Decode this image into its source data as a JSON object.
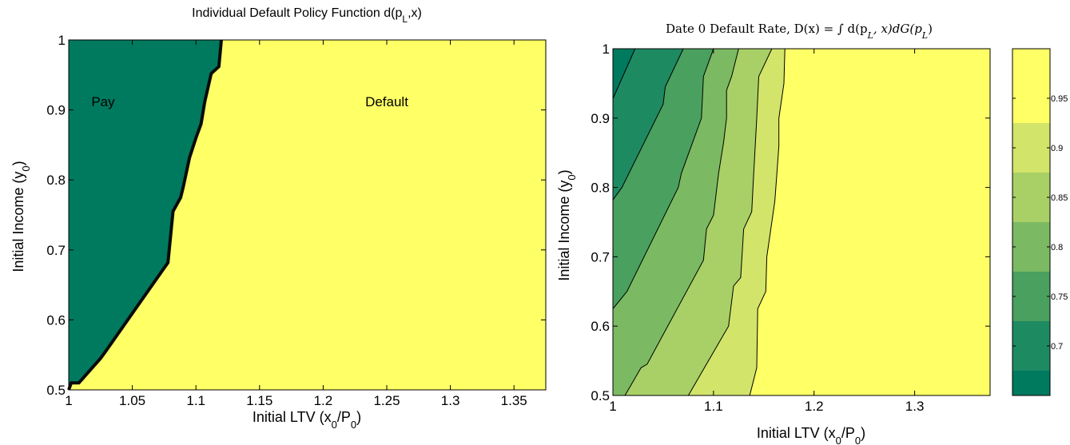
{
  "colors": {
    "pay": "#007a5e",
    "default": "#ffff66",
    "levels": [
      "#007a5e",
      "#1e8a62",
      "#4aa05e",
      "#7bba62",
      "#a8d066",
      "#d2e46a",
      "#ffff66"
    ]
  },
  "chart_data": [
    {
      "type": "area",
      "title_main": "Individual Default Policy Function d(p",
      "title_sub": "L",
      "title_end": ",x)",
      "xlabel_main": "Initial LTV (x",
      "xlabel_sub1": "0",
      "xlabel_mid": "/P",
      "xlabel_sub2": "0",
      "xlabel_end": ")",
      "ylabel_main": "Initial Income (y",
      "ylabel_sub": "0",
      "ylabel_end": ")",
      "xlim": [
        1,
        1.375
      ],
      "ylim": [
        0.5,
        1
      ],
      "xticks": [
        "1",
        "1.05",
        "1.1",
        "1.15",
        "1.2",
        "1.25",
        "1.3",
        "1.35"
      ],
      "xtick_values": [
        1,
        1.05,
        1.1,
        1.15,
        1.2,
        1.25,
        1.3,
        1.35
      ],
      "yticks": [
        "0.5",
        "0.6",
        "0.7",
        "0.8",
        "0.9",
        "1"
      ],
      "ytick_values": [
        0.5,
        0.6,
        0.7,
        0.8,
        0.9,
        1
      ],
      "boundary": [
        [
          1,
          0.5
        ],
        [
          1.002,
          0.51
        ],
        [
          1.008,
          0.51
        ],
        [
          1.025,
          0.545
        ],
        [
          1.029,
          0.555
        ],
        [
          1.078,
          0.682
        ],
        [
          1.082,
          0.755
        ],
        [
          1.088,
          0.775
        ],
        [
          1.09,
          0.79
        ],
        [
          1.095,
          0.832
        ],
        [
          1.1,
          0.86
        ],
        [
          1.104,
          0.88
        ],
        [
          1.107,
          0.912
        ],
        [
          1.112,
          0.952
        ],
        [
          1.118,
          0.962
        ],
        [
          1.12,
          1
        ]
      ],
      "annotations": [
        {
          "text": "Pay",
          "x": 1.027,
          "y": 0.905
        },
        {
          "text": "Default",
          "x": 1.25,
          "y": 0.905
        }
      ]
    },
    {
      "type": "area",
      "title": "Date 0 Default Rate, D(x) = ∫ d(p",
      "title_sub1": "L",
      "title_mid": ", x)dG(p",
      "title_sub2": "L",
      "title_end": ")",
      "xlabel_main": "Initial LTV (x",
      "xlabel_sub1": "0",
      "xlabel_mid": "/P",
      "xlabel_sub2": "0",
      "xlabel_end": ")",
      "ylabel_main": "Initial Income (y",
      "ylabel_sub": "0",
      "ylabel_end": ")",
      "xlim": [
        1,
        1.375
      ],
      "ylim": [
        0.5,
        1
      ],
      "xticks": [
        "1",
        "1.1",
        "1.2",
        "1.3"
      ],
      "xtick_values": [
        1,
        1.1,
        1.2,
        1.3
      ],
      "yticks": [
        "0.5",
        "0.6",
        "0.7",
        "0.8",
        "0.9",
        "1"
      ],
      "ytick_values": [
        0.5,
        0.6,
        0.7,
        0.8,
        0.9,
        1
      ],
      "contours": [
        [
          [
            1,
            0.928
          ],
          [
            1.022,
            1
          ]
        ],
        [
          [
            1,
            0.782
          ],
          [
            1.009,
            0.8
          ],
          [
            1.05,
            0.92
          ],
          [
            1.052,
            0.945
          ],
          [
            1.07,
            1
          ]
        ],
        [
          [
            1,
            0.625
          ],
          [
            1.014,
            0.65
          ],
          [
            1.065,
            0.8
          ],
          [
            1.068,
            0.82
          ],
          [
            1.088,
            0.9
          ],
          [
            1.09,
            0.96
          ],
          [
            1.1,
            1
          ]
        ],
        [
          [
            1.012,
            0.5
          ],
          [
            1.028,
            0.54
          ],
          [
            1.034,
            0.545
          ],
          [
            1.09,
            0.695
          ],
          [
            1.093,
            0.74
          ],
          [
            1.1,
            0.76
          ],
          [
            1.105,
            0.82
          ],
          [
            1.11,
            0.865
          ],
          [
            1.113,
            0.9
          ],
          [
            1.113,
            0.94
          ],
          [
            1.118,
            0.96
          ],
          [
            1.125,
            1
          ]
        ],
        [
          [
            1.075,
            0.5
          ],
          [
            1.115,
            0.6
          ],
          [
            1.12,
            0.658
          ],
          [
            1.127,
            0.67
          ],
          [
            1.13,
            0.74
          ],
          [
            1.138,
            0.765
          ],
          [
            1.14,
            0.82
          ],
          [
            1.143,
            0.9
          ],
          [
            1.145,
            0.96
          ],
          [
            1.158,
            1
          ]
        ],
        [
          [
            1.136,
            0.5
          ],
          [
            1.143,
            0.54
          ],
          [
            1.144,
            0.625
          ],
          [
            1.152,
            0.65
          ],
          [
            1.153,
            0.7
          ],
          [
            1.161,
            0.78
          ],
          [
            1.163,
            0.82
          ],
          [
            1.165,
            0.86
          ],
          [
            1.165,
            0.9
          ],
          [
            1.17,
            0.95
          ],
          [
            1.171,
            1
          ]
        ]
      ],
      "annotations": [],
      "colorbar": {
        "ticks": [
          "0.7",
          "0.75",
          "0.8",
          "0.85",
          "0.9",
          "0.95"
        ],
        "tick_values": [
          0.7,
          0.75,
          0.8,
          0.85,
          0.9,
          0.95
        ],
        "range": [
          0.65,
          1
        ],
        "boundaries": [
          0.675,
          0.725,
          0.775,
          0.825,
          0.875,
          0.925,
          1.0
        ]
      }
    }
  ]
}
